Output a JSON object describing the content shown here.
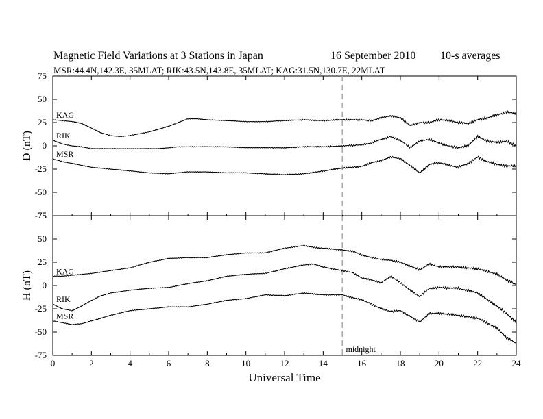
{
  "header": {
    "title": "Magnetic Field Variations at 3 Stations in Japan",
    "date": "16 September 2010",
    "averaging": "10-s averages",
    "stations": "MSR:44.4N,142.3E, 35MLAT;  RIK:43.5N,143.8E, 35MLAT;  KAG:31.5N,130.7E, 22MLAT"
  },
  "colors": {
    "trace": "#000000",
    "midnight_line": "#aaaaaa",
    "axes": "#000000"
  },
  "chart_data": [
    {
      "type": "line",
      "panel": "top",
      "ylabel": "D (nT)",
      "xlabel": "",
      "xlim": [
        0,
        24
      ],
      "ylim": [
        -75,
        75
      ],
      "x_ticks": [
        0,
        2,
        4,
        6,
        8,
        10,
        12,
        14,
        16,
        18,
        20,
        22,
        24
      ],
      "y_ticks": [
        -75,
        -50,
        -25,
        0,
        25,
        50,
        75
      ],
      "annotation": {
        "x": 15,
        "text": ""
      },
      "series": [
        {
          "name": "KAG",
          "x": [
            0,
            0.5,
            1,
            1.5,
            2,
            2.5,
            3,
            3.5,
            4,
            4.5,
            5,
            5.5,
            6,
            6.5,
            7,
            7.5,
            8,
            9,
            10,
            11,
            12,
            13,
            14,
            15,
            16,
            16.5,
            17,
            17.5,
            18,
            18.5,
            19,
            19.5,
            20,
            20.5,
            21,
            21.5,
            22,
            22.5,
            23,
            23.5,
            24
          ],
          "values": [
            28,
            27,
            26,
            24,
            19,
            14,
            11,
            10,
            11,
            13,
            15,
            18,
            21,
            25,
            29,
            29,
            28,
            27,
            26,
            26,
            27,
            28,
            27,
            28,
            28,
            27,
            30,
            32,
            30,
            22,
            25,
            25,
            28,
            27,
            25,
            24,
            28,
            30,
            33,
            36,
            35
          ]
        },
        {
          "name": "RIK",
          "x": [
            0,
            0.5,
            1,
            1.5,
            2,
            3,
            4,
            5,
            5.5,
            6,
            6.5,
            7,
            8,
            9,
            10,
            11,
            12,
            13,
            14,
            15,
            16,
            16.5,
            17,
            17.5,
            18,
            18.5,
            19,
            19.5,
            20,
            20.5,
            21,
            21.5,
            22,
            22.5,
            23,
            23.5,
            24
          ],
          "values": [
            6,
            2,
            0,
            -1,
            -3,
            -3,
            -3,
            -3,
            -3,
            -2,
            -1,
            -1,
            -1,
            -1,
            -2,
            -2,
            -2,
            -1,
            -1,
            0,
            1,
            3,
            7,
            10,
            6,
            -2,
            5,
            7,
            3,
            0,
            -2,
            0,
            10,
            5,
            4,
            5,
            0
          ]
        },
        {
          "name": "MSR",
          "x": [
            0,
            0.5,
            1,
            1.5,
            2,
            3,
            4,
            5,
            6,
            7,
            8,
            9,
            10,
            11,
            12,
            13,
            14,
            15,
            16,
            16.5,
            17,
            17.5,
            18,
            18.5,
            19,
            19.5,
            20,
            20.5,
            21,
            21.5,
            22,
            22.5,
            23,
            23.5,
            24
          ],
          "values": [
            -14,
            -17,
            -19,
            -21,
            -23,
            -25,
            -27,
            -29,
            -30,
            -28,
            -28,
            -29,
            -29,
            -30,
            -31,
            -30,
            -27,
            -24,
            -22,
            -18,
            -16,
            -12,
            -14,
            -21,
            -29,
            -20,
            -18,
            -21,
            -23,
            -19,
            -12,
            -17,
            -20,
            -22,
            -21
          ]
        }
      ]
    },
    {
      "type": "line",
      "panel": "bottom",
      "ylabel": "H (nT)",
      "xlabel": "Universal Time",
      "xlim": [
        0,
        24
      ],
      "ylim": [
        -75,
        75
      ],
      "x_ticks": [
        0,
        2,
        4,
        6,
        8,
        10,
        12,
        14,
        16,
        18,
        20,
        22,
        24
      ],
      "y_ticks": [
        -75,
        -50,
        -25,
        0,
        25,
        50,
        75
      ],
      "annotation": {
        "x": 15,
        "text": "midnight"
      },
      "series": [
        {
          "name": "KAG",
          "x": [
            0,
            0.5,
            1,
            1.5,
            2,
            3,
            4,
            5,
            6,
            7,
            8,
            9,
            10,
            11,
            12,
            13,
            13.5,
            14,
            15,
            15.5,
            16,
            16.5,
            17,
            17.5,
            18,
            18.5,
            19,
            19.5,
            20,
            21,
            22,
            23,
            23.5,
            24
          ],
          "values": [
            10,
            10,
            11,
            12,
            13,
            16,
            19,
            25,
            29,
            30,
            30,
            33,
            35,
            35,
            40,
            43,
            41,
            40,
            38,
            37,
            33,
            30,
            28,
            27,
            25,
            21,
            17,
            23,
            20,
            20,
            18,
            12,
            6,
            1
          ]
        },
        {
          "name": "RIK",
          "x": [
            0,
            0.5,
            1,
            1.5,
            2,
            2.5,
            3,
            4,
            5,
            6,
            7,
            8,
            9,
            10,
            11,
            12,
            13,
            13.5,
            14,
            15,
            15.5,
            16,
            16.5,
            17,
            17.5,
            18,
            18.5,
            19,
            19.5,
            20,
            21,
            22,
            23,
            23.5,
            24
          ],
          "values": [
            -20,
            -25,
            -27,
            -22,
            -16,
            -11,
            -8,
            -5,
            -3,
            -2,
            2,
            5,
            10,
            12,
            13,
            18,
            22,
            23,
            20,
            16,
            14,
            8,
            6,
            3,
            10,
            3,
            -5,
            -12,
            -3,
            -2,
            -3,
            -8,
            -22,
            -30,
            -40
          ]
        },
        {
          "name": "MSR",
          "x": [
            0,
            0.5,
            1,
            1.5,
            2,
            2.5,
            3,
            4,
            5,
            6,
            7,
            8,
            9,
            10,
            11,
            12,
            13,
            14,
            15,
            15.5,
            16,
            16.5,
            17,
            17.5,
            18,
            18.5,
            19,
            19.5,
            20,
            21,
            22,
            23,
            23.5,
            24
          ],
          "values": [
            -38,
            -40,
            -42,
            -41,
            -38,
            -35,
            -32,
            -27,
            -25,
            -23,
            -23,
            -20,
            -16,
            -14,
            -10,
            -11,
            -8,
            -10,
            -10,
            -13,
            -15,
            -20,
            -25,
            -28,
            -27,
            -33,
            -39,
            -30,
            -30,
            -32,
            -35,
            -46,
            -56,
            -62
          ]
        }
      ]
    }
  ]
}
